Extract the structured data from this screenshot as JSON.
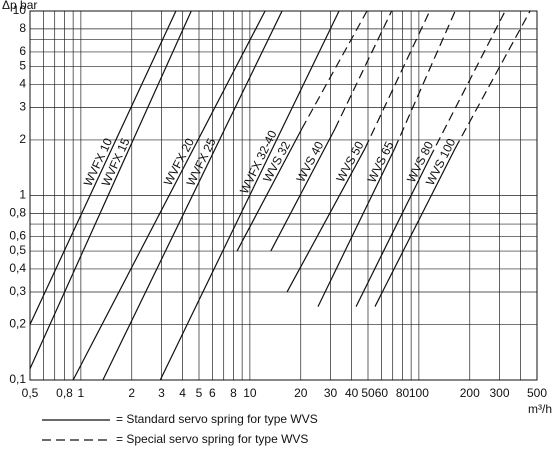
{
  "chart_data": {
    "type": "line",
    "log_x": true,
    "log_y": true,
    "grid": true,
    "y_label": "Δp bar",
    "x_label": "m³/h",
    "xlim": [
      0.5,
      500
    ],
    "ylim": [
      0.1,
      10
    ],
    "xticks": [
      {
        "value": 0.5,
        "label": "0,5"
      },
      {
        "value": 0.8,
        "label": "0,8"
      },
      1,
      2,
      3,
      4,
      5,
      6,
      8,
      10,
      20,
      30,
      40,
      50,
      60,
      80,
      100,
      200,
      300,
      500
    ],
    "xminorticks": [
      0.6,
      0.7,
      0.9,
      7,
      9,
      70,
      90,
      400
    ],
    "yticks": [
      {
        "value": 0.1,
        "label": "0,1"
      },
      {
        "value": 0.2,
        "label": "0,2"
      },
      {
        "value": 0.3,
        "label": "0,3"
      },
      {
        "value": 0.4,
        "label": "0,4"
      },
      {
        "value": 0.5,
        "label": "0,5"
      },
      {
        "value": 0.6,
        "label": "0,6"
      },
      {
        "value": 0.8,
        "label": "0,8"
      },
      1,
      2,
      3,
      4,
      5,
      6,
      8,
      10
    ],
    "yminorticks": [
      0.7,
      7
    ],
    "color": "#111111",
    "series": [
      {
        "name": "WVFX 10",
        "x": [
          0.5,
          3.65
        ],
        "values": [
          0.2,
          10
        ],
        "styles": [
          "solid"
        ]
      },
      {
        "name": "WVFX 15",
        "x": [
          0.5,
          4.5
        ],
        "values": [
          0.115,
          10
        ],
        "styles": [
          "solid"
        ]
      },
      {
        "name": "WVFX 20",
        "x": [
          0.9,
          12.3
        ],
        "values": [
          0.1,
          10
        ],
        "styles": [
          "solid"
        ]
      },
      {
        "name": "WVFX 25",
        "x": [
          1.35,
          15.5
        ],
        "values": [
          0.1,
          10
        ],
        "styles": [
          "solid"
        ]
      },
      {
        "name": "WVFX 32-40",
        "x": [
          2.95,
          33.7
        ],
        "values": [
          0.1,
          10
        ],
        "styles": [
          "solid"
        ]
      },
      {
        "name": "WVS 32",
        "x": [
          8.4,
          20.3,
          49.3
        ],
        "values": [
          0.5,
          2.3,
          10
        ],
        "styles": [
          "solid",
          "dashed"
        ]
      },
      {
        "name": "WVS 40",
        "x": [
          13.3,
          31.9,
          69
        ],
        "values": [
          0.5,
          2.3,
          10
        ],
        "styles": [
          "solid",
          "dashed"
        ]
      },
      {
        "name": "WVS 50",
        "x": [
          16.6,
          48,
          116
        ],
        "values": [
          0.3,
          1.8,
          10
        ],
        "styles": [
          "solid",
          "dashed"
        ]
      },
      {
        "name": "WVS 65",
        "x": [
          25.3,
          72,
          164
        ],
        "values": [
          0.25,
          1.8,
          10
        ],
        "styles": [
          "solid",
          "dashed"
        ]
      },
      {
        "name": "WVS 80",
        "x": [
          42.5,
          116,
          324
        ],
        "values": [
          0.25,
          1.6,
          10
        ],
        "styles": [
          "solid",
          "dashed"
        ]
      },
      {
        "name": "WVS 100",
        "x": [
          55,
          164,
          455
        ],
        "values": [
          0.25,
          1.8,
          10
        ],
        "styles": [
          "solid",
          "dashed"
        ]
      }
    ],
    "legend": [
      {
        "label": "= Standard servo spring for type WVS",
        "style": "solid"
      },
      {
        "label": "= Special servo spring for type WVS",
        "style": "dashed"
      }
    ]
  }
}
